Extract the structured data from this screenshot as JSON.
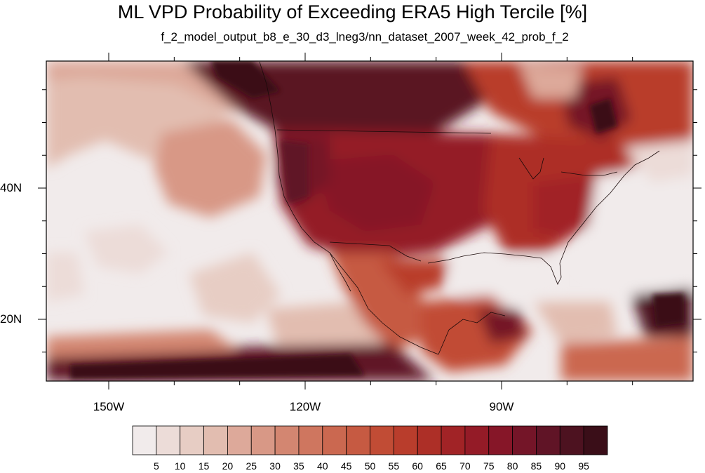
{
  "title": "ML VPD Probability of Exceeding ERA5 High Tercile [%]",
  "subtitle": "f_2_model_output_b8_e_30_d3_lneg3/nn_dataset_2007_week_42_prob_f_2",
  "map": {
    "lon_ticks": [
      {
        "lon": -150,
        "label": "150W"
      },
      {
        "lon": -120,
        "label": "120W"
      },
      {
        "lon": -90,
        "label": "90W"
      }
    ],
    "lat_ticks": [
      {
        "lat": 40,
        "label": "40N"
      },
      {
        "lat": 20,
        "label": "20N"
      }
    ],
    "colorbar": {
      "labels": [
        "5",
        "10",
        "15",
        "20",
        "25",
        "30",
        "35",
        "40",
        "45",
        "50",
        "55",
        "60",
        "65",
        "70",
        "75",
        "80",
        "85",
        "90",
        "95"
      ],
      "colors": [
        "#f1ebeb",
        "#ecdcd8",
        "#e7cdc4",
        "#e2bdb0",
        "#dda99a",
        "#d89886",
        "#d38671",
        "#cf765f",
        "#cb6850",
        "#c65a42",
        "#c14c35",
        "#b93d2c",
        "#ad2f27",
        "#a12326",
        "#941b27",
        "#861628",
        "#741528",
        "#601426",
        "#4d1220",
        "#3a0e18"
      ]
    }
  }
}
